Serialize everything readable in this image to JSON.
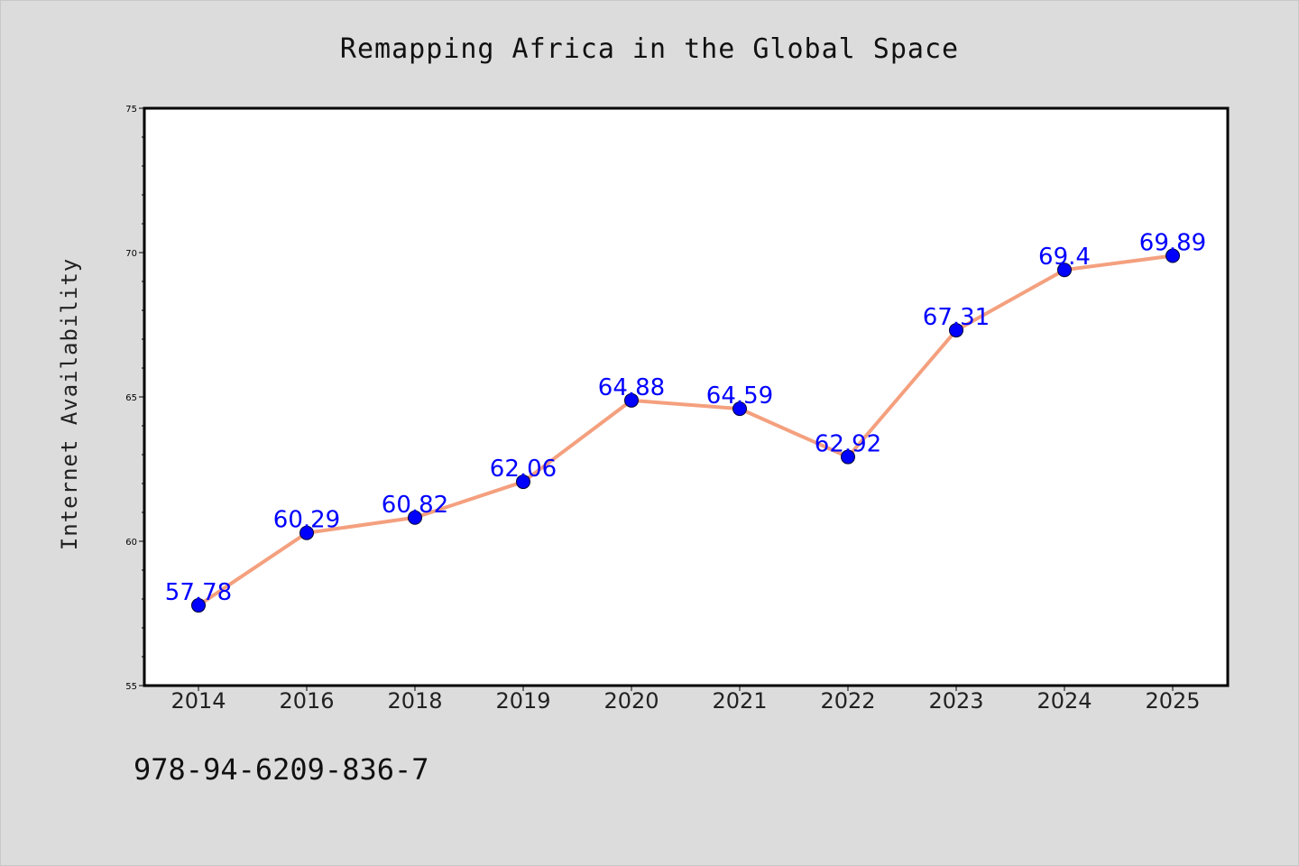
{
  "chart_data": {
    "type": "line",
    "title": "Remapping Africa in the Global Space",
    "xlabel": "",
    "ylabel": "Internet Availability",
    "categories": [
      "2014",
      "2016",
      "2018",
      "2019",
      "2020",
      "2021",
      "2022",
      "2023",
      "2024",
      "2025"
    ],
    "series": [
      {
        "values": [
          57.78,
          60.29,
          60.82,
          62.06,
          64.88,
          64.59,
          62.92,
          67.31,
          69.4,
          69.89
        ],
        "data_labels": [
          "57.78",
          "60.29",
          "60.82",
          "62.06",
          "64.88",
          "64.59",
          "62.92",
          "67.31",
          "69.4",
          "69.89"
        ],
        "line_color": "#f4a07e",
        "marker_color": "#0000ff"
      }
    ],
    "ylim": [
      55,
      75
    ],
    "yticks": [
      55,
      60,
      65,
      70,
      75
    ],
    "yticks_labels": [
      "55",
      "60",
      "65",
      "70",
      "75"
    ],
    "grid": false,
    "legend": "none"
  },
  "footer": {
    "isbn": "978-94-6209-836-7"
  },
  "colors": {
    "background": "#dcdcdc",
    "plot_background": "#ffffff",
    "line": "#f4a07e",
    "marker": "#0000ff",
    "data_label": "#0000ff"
  }
}
